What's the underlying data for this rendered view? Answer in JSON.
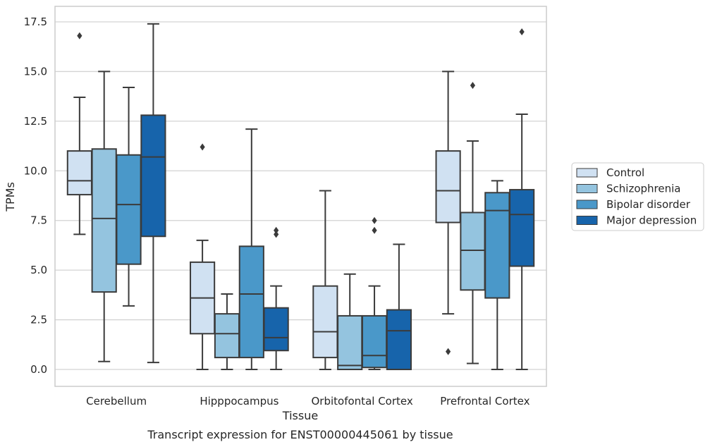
{
  "chart_data": {
    "type": "box",
    "title": "",
    "caption": "Transcript expression for ENST00000445061 by tissue",
    "xlabel": "Tissue",
    "ylabel": "TPMs",
    "ylim": [
      -0.8,
      18.3
    ],
    "yticks": [
      "0.0",
      "2.5",
      "5.0",
      "7.5",
      "10.0",
      "12.5",
      "15.0",
      "17.5"
    ],
    "grid": "horizontal",
    "legend_position": "right",
    "categories": [
      "Cerebellum",
      "Hipppocampus",
      "Orbitofontal Cortex",
      "Prefrontal Cortex"
    ],
    "series": [
      {
        "name": "Control",
        "color": "#d0e1f2",
        "boxes": [
          {
            "whisker_low": 6.8,
            "q1": 8.8,
            "median": 9.5,
            "q3": 11.0,
            "whisker_high": 13.7,
            "outliers": [
              16.8
            ]
          },
          {
            "whisker_low": 0.0,
            "q1": 1.8,
            "median": 3.6,
            "q3": 5.4,
            "whisker_high": 6.5,
            "outliers": [
              11.2
            ]
          },
          {
            "whisker_low": 0.0,
            "q1": 0.6,
            "median": 1.9,
            "q3": 4.2,
            "whisker_high": 9.0,
            "outliers": []
          },
          {
            "whisker_low": 2.8,
            "q1": 7.4,
            "median": 9.0,
            "q3": 11.0,
            "whisker_high": 15.0,
            "outliers": [
              0.9
            ]
          }
        ]
      },
      {
        "name": "Schizophrenia",
        "color": "#94c4df",
        "boxes": [
          {
            "whisker_low": 0.4,
            "q1": 3.9,
            "median": 7.6,
            "q3": 11.1,
            "whisker_high": 15.0,
            "outliers": []
          },
          {
            "whisker_low": 0.0,
            "q1": 0.6,
            "median": 1.8,
            "q3": 2.8,
            "whisker_high": 3.8,
            "outliers": []
          },
          {
            "whisker_low": 0.0,
            "q1": 0.0,
            "median": 0.2,
            "q3": 2.7,
            "whisker_high": 4.8,
            "outliers": []
          },
          {
            "whisker_low": 0.3,
            "q1": 4.0,
            "median": 6.0,
            "q3": 7.9,
            "whisker_high": 11.5,
            "outliers": [
              14.3
            ]
          }
        ]
      },
      {
        "name": "Bipolar disorder",
        "color": "#4a98c9",
        "boxes": [
          {
            "whisker_low": 3.2,
            "q1": 5.3,
            "median": 8.3,
            "q3": 10.8,
            "whisker_high": 14.2,
            "outliers": []
          },
          {
            "whisker_low": 0.0,
            "q1": 0.6,
            "median": 3.8,
            "q3": 6.2,
            "whisker_high": 12.1,
            "outliers": []
          },
          {
            "whisker_low": 0.0,
            "q1": 0.1,
            "median": 0.7,
            "q3": 2.7,
            "whisker_high": 4.2,
            "outliers": [
              7.0,
              7.5
            ]
          },
          {
            "whisker_low": 0.0,
            "q1": 3.6,
            "median": 8.0,
            "q3": 8.9,
            "whisker_high": 9.5,
            "outliers": []
          }
        ]
      },
      {
        "name": "Major depression",
        "color": "#1764ab",
        "boxes": [
          {
            "whisker_low": 0.35,
            "q1": 6.7,
            "median": 10.7,
            "q3": 12.8,
            "whisker_high": 17.4,
            "outliers": []
          },
          {
            "whisker_low": 0.0,
            "q1": 0.95,
            "median": 1.6,
            "q3": 3.1,
            "whisker_high": 4.2,
            "outliers": [
              6.8,
              7.0
            ]
          },
          {
            "whisker_low": 0.0,
            "q1": 0.0,
            "median": 1.95,
            "q3": 3.0,
            "whisker_high": 6.3,
            "outliers": []
          },
          {
            "whisker_low": 0.0,
            "q1": 5.2,
            "median": 7.8,
            "q3": 9.05,
            "whisker_high": 12.85,
            "outliers": [
              17.0
            ]
          }
        ]
      }
    ]
  }
}
